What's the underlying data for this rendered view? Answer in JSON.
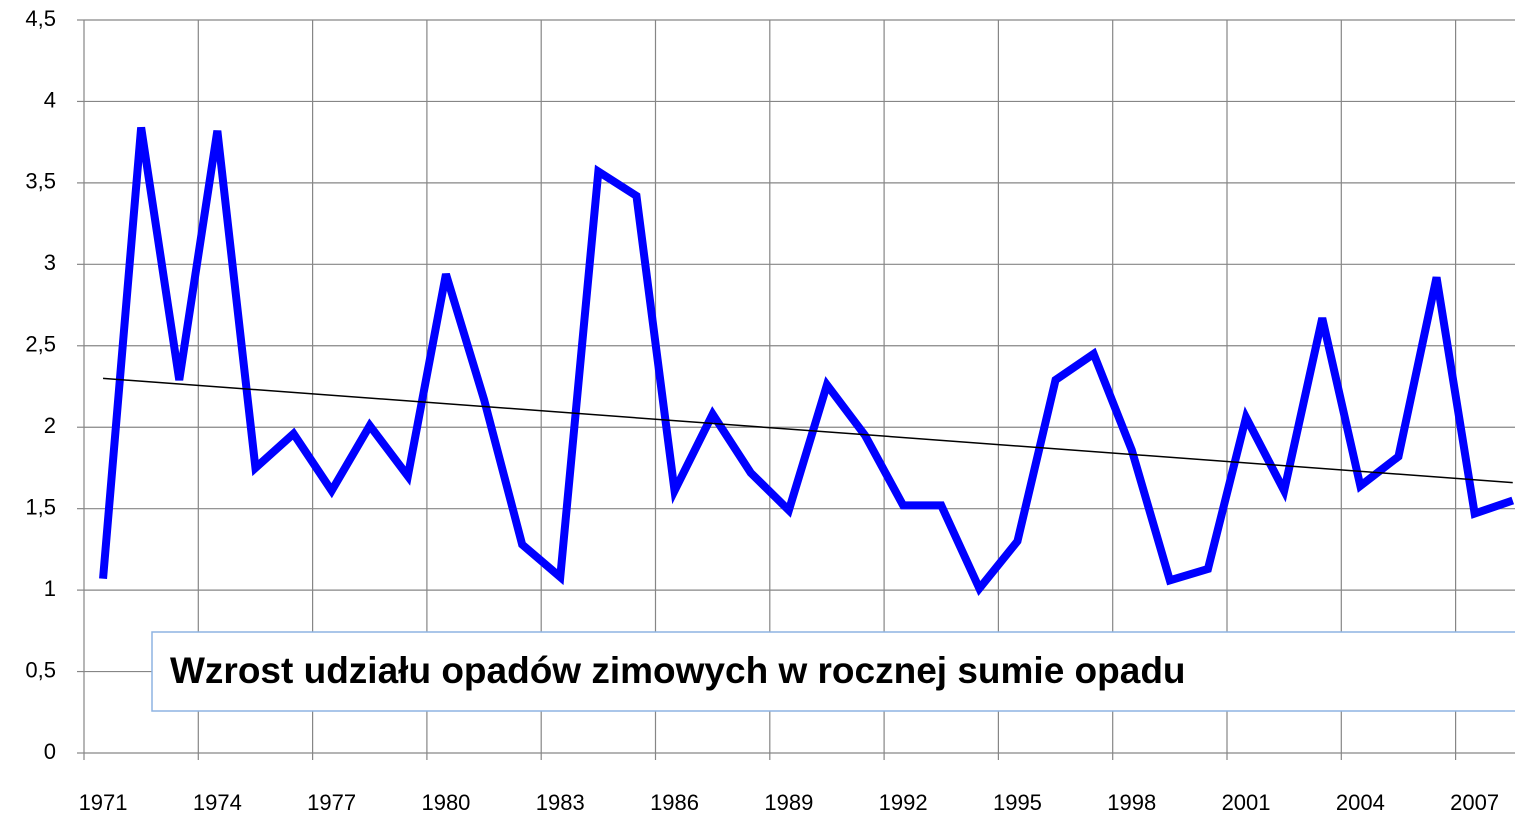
{
  "chart_data": {
    "type": "line",
    "categories": [
      "1971",
      null,
      null,
      "1974",
      null,
      null,
      "1977",
      null,
      null,
      "1980",
      null,
      null,
      "1983",
      null,
      null,
      "1986",
      null,
      null,
      "1989",
      null,
      null,
      "1992",
      null,
      null,
      "1995",
      null,
      null,
      "1998",
      null,
      null,
      "2001",
      null,
      null,
      "2004",
      null,
      null,
      "2007",
      null
    ],
    "series": [
      {
        "color": "#0000ff",
        "values": [
          1.07,
          3.84,
          2.29,
          3.82,
          1.75,
          1.96,
          1.61,
          2.01,
          1.7,
          2.94,
          2.17,
          1.28,
          1.08,
          3.57,
          3.42,
          1.61,
          2.08,
          1.72,
          1.49,
          2.26,
          1.95,
          1.52,
          1.52,
          1.01,
          1.3,
          2.29,
          2.45,
          1.86,
          1.06,
          1.13,
          2.06,
          1.61,
          2.67,
          1.64,
          1.82,
          2.92,
          1.47,
          1.55
        ]
      }
    ],
    "trend": {
      "values": [
        2.3,
        1.66
      ],
      "color": "#000000"
    },
    "annotation": "Wzrost udziału opadów zimowych w rocznej sumie opadu",
    "ylim": [
      0,
      4.5
    ],
    "yticks": [
      0,
      {
        "value": 0.5,
        "label": "0,5"
      },
      1,
      {
        "value": 1.5,
        "label": "1,5"
      },
      2,
      {
        "value": 2.5,
        "label": "2,5"
      },
      3,
      {
        "value": 3.5,
        "label": "3,5"
      },
      4,
      {
        "value": 4.5,
        "label": "4,5"
      }
    ],
    "grid": true
  }
}
